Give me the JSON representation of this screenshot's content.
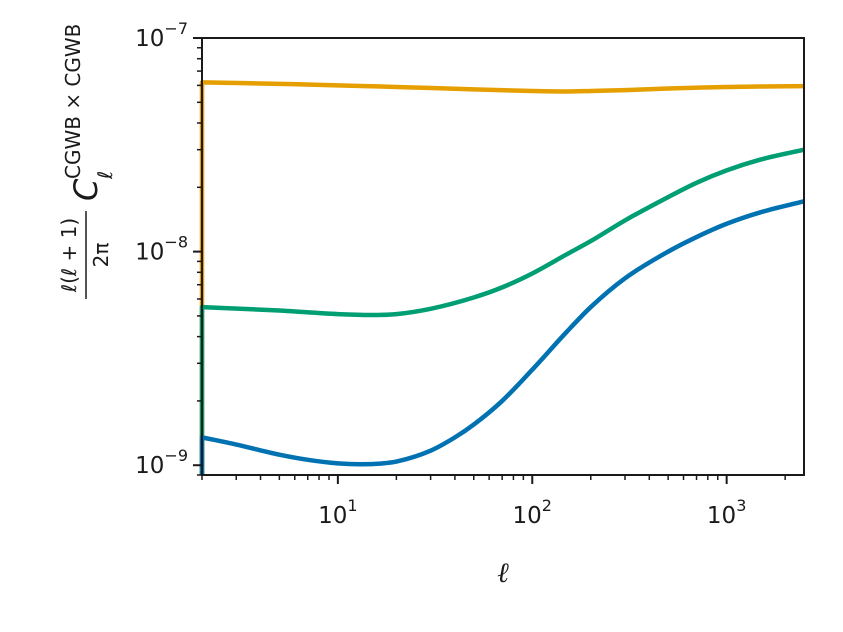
{
  "chart_data": {
    "type": "line",
    "title": "",
    "xlabel": "ℓ",
    "ylabel": {
      "fraction_numerator": "ℓ(ℓ + 1)",
      "fraction_denominator": "2π",
      "symbol": "C",
      "subscript": "ℓ",
      "superscript": "CGWB × CGWB"
    },
    "xscale": "log",
    "yscale": "log",
    "xlim": [
      2,
      2500
    ],
    "ylim": [
      9e-10,
      1e-07
    ],
    "x_ticks": [
      {
        "value": 10,
        "base": "10",
        "exp": "1"
      },
      {
        "value": 100,
        "base": "10",
        "exp": "2"
      },
      {
        "value": 1000,
        "base": "10",
        "exp": "3"
      }
    ],
    "y_ticks": [
      {
        "value": 1e-09,
        "base": "10",
        "exp": "−9"
      },
      {
        "value": 1e-08,
        "base": "10",
        "exp": "−8"
      },
      {
        "value": 1e-07,
        "base": "10",
        "exp": "−7"
      }
    ],
    "grid": false,
    "legend": "none",
    "series": [
      {
        "color": "#e69f00",
        "x": [
          2,
          5,
          10,
          20,
          50,
          100,
          150,
          200,
          300,
          500,
          1000,
          2500
        ],
        "y": [
          6.2e-08,
          6.1e-08,
          6e-08,
          5.9e-08,
          5.75e-08,
          5.65e-08,
          5.62e-08,
          5.65e-08,
          5.7e-08,
          5.8e-08,
          5.9e-08,
          5.95e-08
        ]
      },
      {
        "color": "#009e73",
        "x": [
          2,
          5,
          10,
          15,
          20,
          30,
          50,
          70,
          100,
          150,
          200,
          300,
          500,
          700,
          1000,
          1500,
          2500
        ],
        "y": [
          5.5e-09,
          5.3e-09,
          5.1e-09,
          5.05e-09,
          5.1e-09,
          5.4e-09,
          6.1e-09,
          6.8e-09,
          7.9e-09,
          9.7e-09,
          1.12e-08,
          1.4e-08,
          1.8e-08,
          2.1e-08,
          2.4e-08,
          2.7e-08,
          3e-08
        ]
      },
      {
        "color": "#0072b2",
        "x": [
          2,
          3,
          5,
          7,
          10,
          13,
          17,
          20,
          30,
          40,
          50,
          70,
          100,
          150,
          200,
          300,
          500,
          700,
          1000,
          1500,
          2500
        ],
        "y": [
          1.35e-09,
          1.25e-09,
          1.12e-09,
          1.06e-09,
          1.02e-09,
          1.01e-09,
          1.02e-09,
          1.04e-09,
          1.17e-09,
          1.35e-09,
          1.55e-09,
          2e-09,
          2.8e-09,
          4.2e-09,
          5.5e-09,
          7.5e-09,
          1e-08,
          1.17e-08,
          1.35e-08,
          1.53e-08,
          1.72e-08
        ]
      }
    ]
  }
}
